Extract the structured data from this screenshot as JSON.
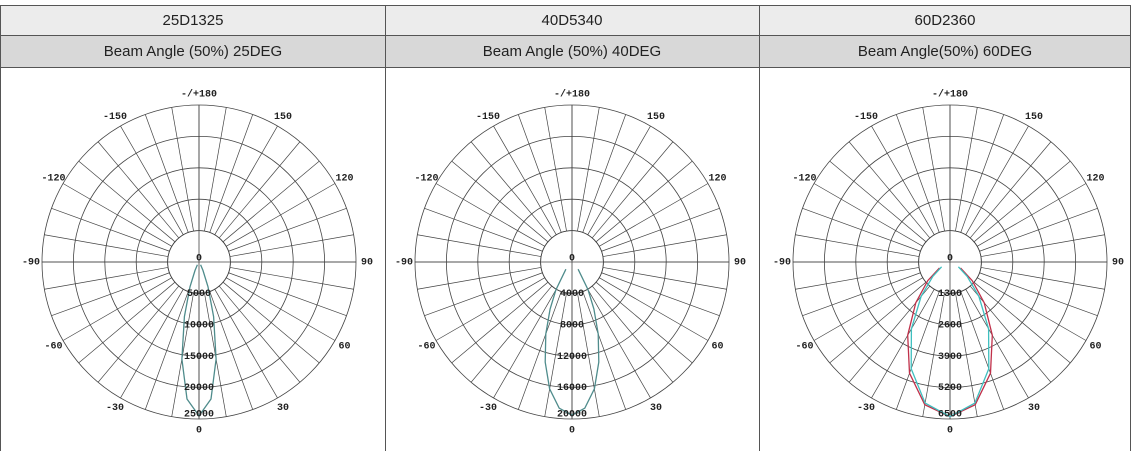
{
  "table": {
    "headers": [
      "25D1325",
      "40D5340",
      "60D2360"
    ],
    "subheaders": [
      "Beam Angle (50%) 25DEG",
      "Beam Angle (50%) 40DEG",
      "Beam Angle(50%) 60DEG"
    ]
  },
  "plots": [
    {
      "type": "polar",
      "angle_labels": [
        {
          "value": 180,
          "label": "-/+180"
        },
        150,
        120,
        90,
        60,
        30,
        0,
        -30,
        -60,
        -90,
        -120,
        -150
      ],
      "rlim": [
        0,
        25000
      ],
      "rticks": [
        0,
        5000,
        10000,
        15000,
        20000,
        25000
      ],
      "curves": [
        {
          "color": "#4f8c8c",
          "angles": [
            -30,
            -25,
            -20,
            -15,
            -10,
            -5,
            0,
            5,
            10,
            15,
            20,
            25,
            30
          ],
          "values": [
            500,
            1500,
            4200,
            9000,
            15700,
            21900,
            24500,
            21900,
            15700,
            9000,
            4200,
            1500,
            500
          ]
        }
      ]
    },
    {
      "type": "polar",
      "angle_labels": [
        {
          "value": 180,
          "label": "-/+180"
        },
        150,
        120,
        90,
        60,
        30,
        0,
        -30,
        -60,
        -90,
        -120,
        -150
      ],
      "rlim": [
        0,
        20000
      ],
      "rticks": [
        0,
        4000,
        8000,
        12000,
        16000,
        20000
      ],
      "curves": [
        {
          "color": "#4f8c8c",
          "angles": [
            -40,
            -30,
            -25,
            -20,
            -15,
            -10,
            -5,
            0,
            5,
            10,
            15,
            20,
            25,
            30,
            40
          ],
          "values": [
            1200,
            4100,
            6600,
            9750,
            13200,
            16400,
            18700,
            19500,
            18700,
            16400,
            13200,
            9750,
            6600,
            4100,
            1200
          ]
        }
      ]
    },
    {
      "type": "polar",
      "angle_labels": [
        {
          "value": 180,
          "label": "-/+180"
        },
        150,
        120,
        90,
        60,
        30,
        0,
        -30,
        -60,
        -90,
        -120,
        -150
      ],
      "rlim": [
        0,
        6500
      ],
      "rticks": [
        0,
        1300,
        2600,
        3900,
        5200,
        6500
      ],
      "curves": [
        {
          "color": "#c0304a",
          "angles": [
            -60,
            -50,
            -40,
            -30,
            -20,
            -10,
            0,
            10,
            20,
            30,
            40,
            50,
            60
          ],
          "values": [
            500,
            1200,
            2200,
            3500,
            4900,
            6000,
            6400,
            6000,
            4900,
            3500,
            2200,
            1200,
            500
          ]
        },
        {
          "color": "#3fbfbf",
          "angles": [
            -60,
            -50,
            -40,
            -30,
            -20,
            -10,
            0,
            10,
            20,
            30,
            40,
            50,
            60
          ],
          "values": [
            400,
            930,
            1860,
            3200,
            4700,
            5930,
            6400,
            5930,
            4700,
            3200,
            1860,
            930,
            400
          ]
        }
      ]
    }
  ]
}
